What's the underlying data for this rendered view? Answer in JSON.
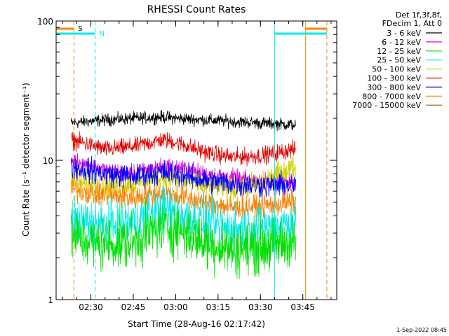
{
  "chart_data": {
    "type": "line",
    "title": "RHESSI Count Rates",
    "xlabel": "Start Time (28-Aug-16 02:17:42)",
    "ylabel": "Count Rate (s⁻¹ detector segment⁻¹)",
    "yscale": "log",
    "ylim": [
      1,
      100
    ],
    "xlim": [
      "02:17:42",
      "03:57:00"
    ],
    "x_ticks": [
      "02:30",
      "02:45",
      "03:00",
      "03:15",
      "03:30",
      "03:45"
    ],
    "y_ticks": [
      "1",
      "10",
      "100"
    ],
    "data_x_range": [
      "02:23:00",
      "03:42:30"
    ],
    "legend_header": [
      "Det 1f,3f,8f,",
      "FDecim 1, Att 0"
    ],
    "series": [
      {
        "name": "3 - 6 keV",
        "color": "#000000",
        "x": [
          "02:23",
          "02:35",
          "02:45",
          "02:55",
          "03:00",
          "03:10",
          "03:20",
          "03:30",
          "03:42"
        ],
        "values": [
          18.5,
          19.5,
          20.0,
          20.5,
          20.0,
          19.5,
          19.0,
          18.5,
          18.0
        ]
      },
      {
        "name": "6 - 12 keV",
        "color": "#e000e0",
        "x": [
          "02:23",
          "02:35",
          "02:45",
          "02:55",
          "03:00",
          "03:10",
          "03:20",
          "03:30",
          "03:42"
        ],
        "values": [
          10.0,
          8.5,
          8.0,
          9.0,
          9.0,
          8.0,
          7.5,
          7.0,
          7.0
        ]
      },
      {
        "name": "12 - 25 keV",
        "color": "#00e000",
        "x": [
          "02:23",
          "02:35",
          "02:45",
          "02:55",
          "03:00",
          "03:10",
          "03:20",
          "03:30",
          "03:42"
        ],
        "values": [
          2.8,
          2.5,
          2.6,
          3.3,
          3.2,
          2.6,
          2.3,
          2.4,
          2.6
        ]
      },
      {
        "name": "25 - 50 keV",
        "color": "#00e8e8",
        "x": [
          "02:23",
          "02:35",
          "02:45",
          "02:55",
          "03:00",
          "03:10",
          "03:20",
          "03:30",
          "03:42"
        ],
        "values": [
          3.6,
          3.4,
          3.6,
          4.4,
          4.2,
          3.6,
          3.2,
          3.3,
          3.6
        ]
      },
      {
        "name": "50 - 100 keV",
        "color": "#d0d000",
        "x": [
          "02:23",
          "02:35",
          "02:45",
          "02:55",
          "03:00",
          "03:10",
          "03:20",
          "03:30",
          "03:42"
        ],
        "values": [
          7.0,
          6.5,
          6.8,
          7.5,
          7.3,
          6.6,
          6.2,
          6.8,
          9.0
        ]
      },
      {
        "name": "100 - 300 keV",
        "color": "#e00000",
        "x": [
          "02:23",
          "02:35",
          "02:45",
          "02:55",
          "03:00",
          "03:10",
          "03:20",
          "03:30",
          "03:42"
        ],
        "values": [
          14.0,
          12.0,
          12.5,
          14.0,
          13.5,
          11.5,
          10.5,
          10.8,
          12.0
        ]
      },
      {
        "name": "300 - 800 keV",
        "color": "#0000ff",
        "x": [
          "02:23",
          "02:35",
          "02:45",
          "02:55",
          "03:00",
          "03:10",
          "03:20",
          "03:30",
          "03:42"
        ],
        "values": [
          9.0,
          8.0,
          7.6,
          8.2,
          8.0,
          7.2,
          6.8,
          6.6,
          6.6
        ]
      },
      {
        "name": "800 - 7000 keV",
        "color": "#ff8000",
        "x": [
          "02:23",
          "02:35",
          "02:45",
          "02:55",
          "03:00",
          "03:10",
          "03:20",
          "03:30",
          "03:42"
        ],
        "values": [
          6.2,
          5.6,
          5.4,
          5.8,
          5.6,
          5.0,
          4.6,
          4.7,
          5.0
        ]
      },
      {
        "name": "7000 - 15000 keV",
        "color": "#a06000",
        "x": [],
        "values": []
      }
    ],
    "annotations": [
      {
        "label": "S",
        "color": "#ff8000",
        "style": "dashed",
        "x": "02:24:00"
      },
      {
        "label": "N",
        "color": "#00e8e8",
        "style": "dashed",
        "x": "02:31:30"
      },
      {
        "label": "",
        "color": "#00e8e8",
        "style": "solid",
        "x": "03:35:00"
      },
      {
        "label": "",
        "color": "#ff8000",
        "style": "solid",
        "x": "03:46:00"
      },
      {
        "label": "",
        "color": "#ff8000",
        "style": "dashed",
        "x": "03:53:30"
      }
    ],
    "footer": "1-Sep-2022 08:45"
  }
}
